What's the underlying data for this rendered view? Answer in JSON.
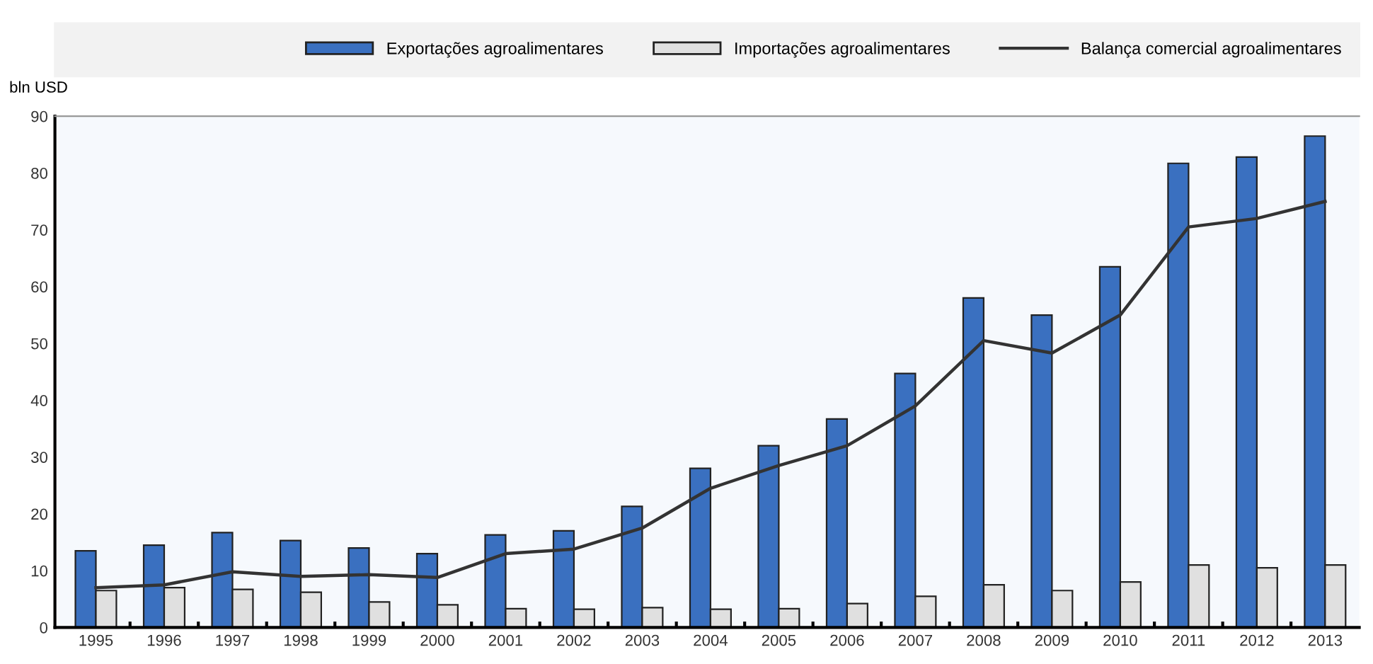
{
  "chart_data": {
    "type": "bar",
    "ylabel": "bln USD",
    "categories": [
      "1995",
      "1996",
      "1997",
      "1998",
      "1999",
      "2000",
      "2001",
      "2002",
      "2003",
      "2004",
      "2005",
      "2006",
      "2007",
      "2008",
      "2009",
      "2010",
      "2011",
      "2012",
      "2013"
    ],
    "series": [
      {
        "name": "Exportações agroalimentares",
        "color": "#3a70c0",
        "values": [
          13.5,
          14.5,
          16.7,
          15.3,
          14,
          13,
          16.3,
          17,
          21.3,
          28,
          32,
          36.7,
          44.7,
          58,
          55,
          63.5,
          81.7,
          82.8,
          86.5
        ]
      },
      {
        "name": "Importações agroalimentares",
        "color": "#e0e0e0",
        "values": [
          6.5,
          7,
          6.7,
          6.2,
          4.5,
          4,
          3.3,
          3.2,
          3.5,
          3.2,
          3.3,
          4.2,
          5.5,
          7.5,
          6.5,
          8,
          11,
          10.5,
          11
        ]
      },
      {
        "name": "Balança comercial agroalimentares",
        "type": "line",
        "color": "#333333",
        "values": [
          7,
          7.5,
          9.8,
          9,
          9.3,
          8.8,
          13,
          13.8,
          17.5,
          24.5,
          28.5,
          32,
          39,
          50.5,
          48.3,
          55,
          70.5,
          72,
          75
        ]
      }
    ],
    "ylim": [
      0,
      90
    ],
    "yticks": [
      0,
      10,
      20,
      30,
      40,
      50,
      60,
      70,
      80,
      90
    ],
    "grid": false,
    "legend": "top",
    "marker": "none",
    "line_style": "solid"
  }
}
